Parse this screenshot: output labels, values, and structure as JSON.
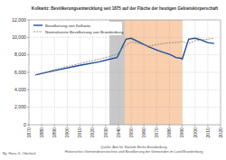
{
  "chart_data": {
    "type": "line",
    "title": "Kolkwitz: Bevölkerungsentwicklung seit 1875 auf der Fläche der heutigen Gebietskörperschaft",
    "x": [
      1875,
      1890,
      1910,
      1925,
      1933,
      1939,
      1946,
      1950,
      1964,
      1971,
      1981,
      1985,
      1989,
      1990,
      1995,
      2000,
      2005,
      2010,
      2015
    ],
    "series": [
      {
        "name": "Bevölkerung von Kolkwitz",
        "color": "#1f4e9c",
        "line_style": "solid",
        "values": [
          5700,
          6200,
          6800,
          7200,
          7500,
          7700,
          9800,
          9900,
          8900,
          8500,
          8000,
          7700,
          7600,
          7500,
          9800,
          9900,
          9700,
          9400,
          9300
        ]
      },
      {
        "name": "Normalisierte Bevölkerung von Brandenburg",
        "color": "#888888",
        "line_style": "dashed",
        "values": [
          5700,
          6300,
          7000,
          7500,
          7800,
          8100,
          9100,
          9500,
          9000,
          9200,
          9400,
          9400,
          9500,
          9500,
          9300,
          9600,
          9700,
          9800,
          9900
        ]
      }
    ],
    "periods": [
      {
        "start": 1933,
        "end": 1945,
        "color": "#c8c8c8"
      },
      {
        "start": 1945,
        "end": 1990,
        "color": "#f9cfae"
      }
    ],
    "xlim": [
      1870,
      2020
    ],
    "xticks": [
      1870,
      1880,
      1890,
      1900,
      1910,
      1920,
      1930,
      1940,
      1950,
      1960,
      1970,
      1980,
      1990,
      2000,
      2010,
      2020
    ],
    "ylim": [
      0,
      12000
    ],
    "yticks": [
      0,
      {
        "value": 2000,
        "label": "2,000"
      },
      {
        "value": 4000,
        "label": "4,000"
      },
      {
        "value": 6000,
        "label": "6,000"
      },
      {
        "value": 8000,
        "label": "8,000"
      },
      {
        "value": 10000,
        "label": "10,000"
      },
      {
        "value": 12000,
        "label": "12,000"
      }
    ],
    "grid": true,
    "legend": "upper-left",
    "author": "By: Hans G. Oberlack",
    "source": [
      "Quelle: Amt für Statistik Berlin-Brandenburg",
      "Historisches Gemeindeverzeichnis und Bevölkerung der Gemeinden im Land Brandenburg"
    ]
  }
}
